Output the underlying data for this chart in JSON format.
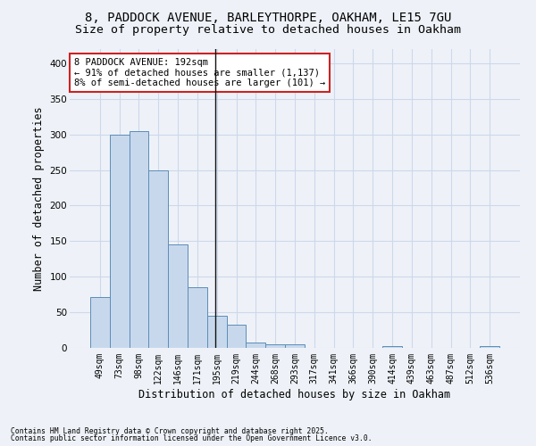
{
  "title_line1": "8, PADDOCK AVENUE, BARLEYTHORPE, OAKHAM, LE15 7GU",
  "title_line2": "Size of property relative to detached houses in Oakham",
  "xlabel": "Distribution of detached houses by size in Oakham",
  "ylabel": "Number of detached properties",
  "categories": [
    "49sqm",
    "73sqm",
    "98sqm",
    "122sqm",
    "146sqm",
    "171sqm",
    "195sqm",
    "219sqm",
    "244sqm",
    "268sqm",
    "293sqm",
    "317sqm",
    "341sqm",
    "366sqm",
    "390sqm",
    "414sqm",
    "439sqm",
    "463sqm",
    "487sqm",
    "512sqm",
    "536sqm"
  ],
  "values": [
    72,
    300,
    305,
    250,
    145,
    85,
    45,
    33,
    8,
    5,
    5,
    0,
    0,
    0,
    0,
    2,
    0,
    0,
    0,
    0,
    2
  ],
  "bar_color": "#c8d8ec",
  "bar_edge_color": "#5b8db8",
  "grid_color": "#cdd8ea",
  "background_color": "#eef2f8",
  "vline_x": 5.92,
  "vline_color": "#111111",
  "annotation_text": "8 PADDOCK AVENUE: 192sqm\n← 91% of detached houses are smaller (1,137)\n8% of semi-detached houses are larger (101) →",
  "annotation_box_facecolor": "#ffffff",
  "annotation_border_color": "#cc2222",
  "footnote1": "Contains HM Land Registry data © Crown copyright and database right 2025.",
  "footnote2": "Contains public sector information licensed under the Open Government Licence v3.0.",
  "ylim": [
    0,
    420
  ],
  "yticks": [
    0,
    50,
    100,
    150,
    200,
    250,
    300,
    350,
    400
  ],
  "title_fontsize": 10,
  "subtitle_fontsize": 9.5,
  "tick_fontsize": 7,
  "ylabel_fontsize": 8.5,
  "xlabel_fontsize": 8.5,
  "annot_fontsize": 7.5,
  "footnote_fontsize": 5.8
}
